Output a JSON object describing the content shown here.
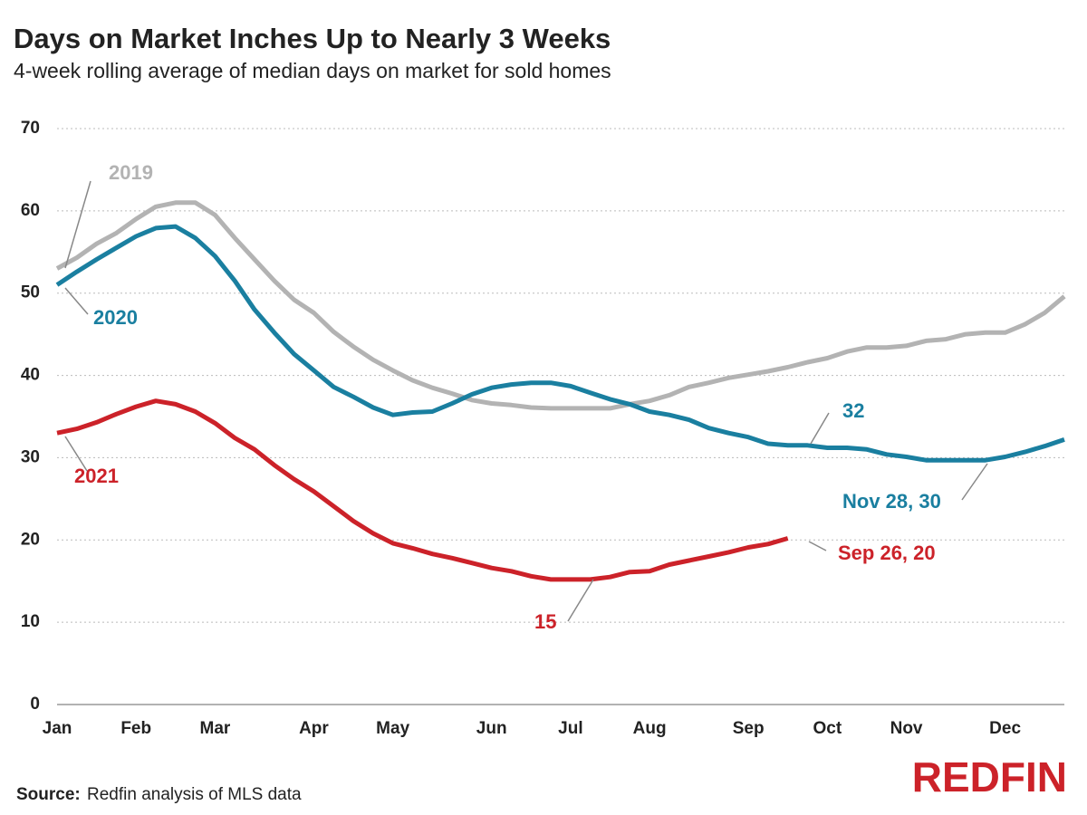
{
  "chart_data": {
    "type": "line",
    "title": "Days on Market Inches Up to Nearly 3 Weeks",
    "subtitle": "4-week rolling average of median days on market for sold homes",
    "categories": [
      "Jan",
      null,
      null,
      null,
      "Feb",
      null,
      null,
      null,
      "Mar",
      null,
      null,
      null,
      null,
      "Apr",
      null,
      null,
      null,
      "May",
      null,
      null,
      null,
      null,
      "Jun",
      null,
      null,
      null,
      "Jul",
      null,
      null,
      null,
      "Aug",
      null,
      null,
      null,
      null,
      "Sep",
      null,
      null,
      null,
      "Oct",
      null,
      null,
      null,
      "Nov",
      null,
      null,
      null,
      null,
      "Dec",
      null,
      null,
      null
    ],
    "series": [
      {
        "name": "2019",
        "color": "#b3b3b3",
        "values": [
          53,
          54.3,
          56,
          57.3,
          59,
          60.5,
          61,
          61,
          59.5,
          56.7,
          54.1,
          51.5,
          49.2,
          47.6,
          45.3,
          43.5,
          41.9,
          40.6,
          39.4,
          38.5,
          37.8,
          37,
          36.6,
          36.4,
          36.1,
          36,
          36,
          36,
          36,
          36.5,
          36.9,
          37.6,
          38.6,
          39.1,
          39.7,
          40.1,
          40.5,
          41,
          41.6,
          42.1,
          42.9,
          43.4,
          43.4,
          43.6,
          44.2,
          44.4,
          45,
          45.2,
          45.2,
          46.2,
          47.6,
          49.6
        ]
      },
      {
        "name": "2020",
        "color": "#1a7fa0",
        "values": [
          51,
          52.6,
          54.1,
          55.5,
          56.9,
          57.9,
          58.1,
          56.7,
          54.5,
          51.5,
          48,
          45.2,
          42.6,
          40.6,
          38.6,
          37.4,
          36.1,
          35.2,
          35.5,
          35.6,
          36.6,
          37.7,
          38.5,
          38.9,
          39.1,
          39.1,
          38.7,
          37.9,
          37.1,
          36.5,
          35.6,
          35.2,
          34.6,
          33.6,
          33,
          32.5,
          31.7,
          31.5,
          31.5,
          31.2,
          31.2,
          31,
          30.4,
          30.1,
          29.7,
          29.7,
          29.7,
          29.7,
          30.1,
          30.7,
          31.4,
          32.2
        ]
      },
      {
        "name": "2021",
        "color": "#cc2229",
        "values": [
          33,
          33.5,
          34.3,
          35.3,
          36.2,
          36.9,
          36.5,
          35.6,
          34.2,
          32.4,
          31,
          29.1,
          27.4,
          25.9,
          24.1,
          22.3,
          20.8,
          19.6,
          19,
          18.3,
          17.8,
          17.2,
          16.6,
          16.2,
          15.6,
          15.2,
          15.2,
          15.2,
          15.5,
          16.1,
          16.2,
          17,
          17.5,
          18,
          18.5,
          19.1,
          19.5,
          20.2,
          null,
          null,
          null,
          null,
          null,
          null,
          null,
          null,
          null,
          null,
          null,
          null,
          null,
          null
        ]
      }
    ],
    "ylim": [
      0,
      70
    ],
    "yticks": [
      0,
      10,
      20,
      30,
      40,
      50,
      60,
      70
    ],
    "grid": true,
    "annotations": [
      "2019",
      "2020",
      "2021",
      "32",
      "Nov 28, 30",
      "15",
      "Sep 26, 20"
    ],
    "source_label": "Source:",
    "source": "Redfin analysis of MLS data",
    "logo": "REDFIN"
  }
}
